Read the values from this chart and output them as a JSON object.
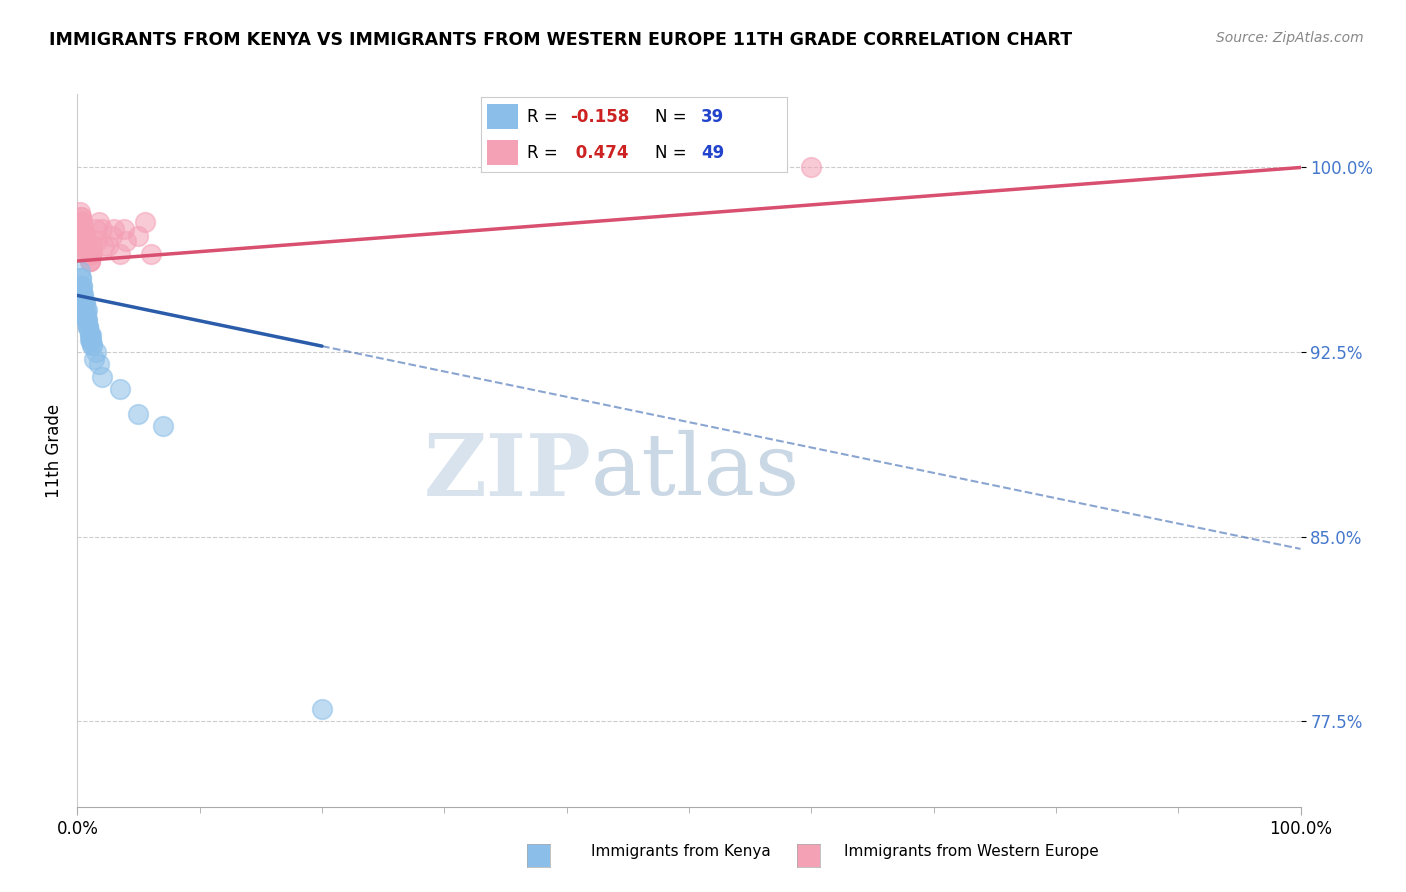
{
  "title": "IMMIGRANTS FROM KENYA VS IMMIGRANTS FROM WESTERN EUROPE 11TH GRADE CORRELATION CHART",
  "source": "Source: ZipAtlas.com",
  "ylabel": "11th Grade",
  "yticks": [
    77.5,
    85.0,
    92.5,
    100.0
  ],
  "ytick_labels": [
    "77.5%",
    "85.0%",
    "92.5%",
    "100.0%"
  ],
  "xlim": [
    0.0,
    100.0
  ],
  "ylim": [
    74.0,
    103.0
  ],
  "blue_color": "#8bbee8",
  "pink_color": "#f4a0b5",
  "blue_line_color": "#2a5caa",
  "pink_line_color": "#d94f70",
  "watermark_zip": "ZIP",
  "watermark_atlas": "atlas",
  "kenya_x": [
    0.2,
    0.3,
    0.4,
    0.5,
    0.6,
    0.7,
    0.8,
    0.9,
    1.0,
    1.1,
    0.3,
    0.4,
    0.5,
    0.6,
    0.7,
    0.8,
    0.9,
    1.0,
    1.1,
    1.2,
    0.2,
    0.3,
    0.4,
    0.5,
    0.6,
    0.7,
    0.8,
    0.9,
    1.0,
    1.1,
    1.5,
    1.8,
    1.2,
    2.0,
    1.4,
    3.5,
    5.0,
    7.0,
    20.0
  ],
  "kenya_y": [
    95.0,
    94.8,
    95.2,
    94.5,
    94.0,
    93.8,
    94.2,
    93.5,
    93.0,
    93.2,
    95.5,
    95.0,
    94.8,
    94.5,
    94.0,
    93.8,
    93.5,
    93.2,
    93.0,
    92.8,
    95.8,
    95.5,
    95.2,
    94.8,
    94.5,
    94.2,
    93.8,
    93.5,
    93.2,
    93.0,
    92.5,
    92.0,
    92.8,
    91.5,
    92.2,
    91.0,
    90.0,
    89.5,
    78.0
  ],
  "europe_x": [
    0.2,
    0.3,
    0.4,
    0.5,
    0.6,
    0.7,
    0.8,
    0.9,
    1.0,
    1.1,
    0.3,
    0.4,
    0.5,
    0.6,
    0.7,
    0.8,
    0.9,
    1.0,
    1.1,
    1.2,
    0.2,
    0.3,
    0.4,
    0.5,
    0.6,
    0.7,
    0.8,
    0.9,
    1.0,
    1.1,
    1.5,
    1.8,
    2.0,
    2.5,
    3.0,
    3.5,
    4.0,
    5.0,
    6.0,
    0.4,
    0.6,
    0.8,
    1.2,
    1.6,
    2.2,
    2.8,
    3.8,
    5.5,
    60.0
  ],
  "europe_y": [
    97.5,
    97.2,
    97.8,
    97.0,
    96.8,
    96.5,
    97.0,
    96.5,
    96.2,
    96.5,
    98.0,
    97.8,
    97.5,
    97.2,
    97.0,
    96.8,
    96.5,
    96.2,
    96.5,
    96.8,
    98.2,
    98.0,
    97.8,
    97.5,
    97.2,
    97.0,
    96.8,
    96.5,
    96.2,
    96.5,
    97.5,
    97.8,
    97.5,
    96.8,
    97.5,
    96.5,
    97.0,
    97.2,
    96.5,
    97.0,
    97.2,
    96.8,
    96.5,
    97.0,
    96.8,
    97.2,
    97.5,
    97.8,
    100.0
  ],
  "kenya_trend_x0": 0.0,
  "kenya_trend_y0": 94.8,
  "kenya_trend_x1": 100.0,
  "kenya_trend_y1": 84.5,
  "kenya_solid_end": 20.0,
  "europe_trend_x0": 0.0,
  "europe_trend_y0": 96.2,
  "europe_trend_x1": 100.0,
  "europe_trend_y1": 100.0
}
